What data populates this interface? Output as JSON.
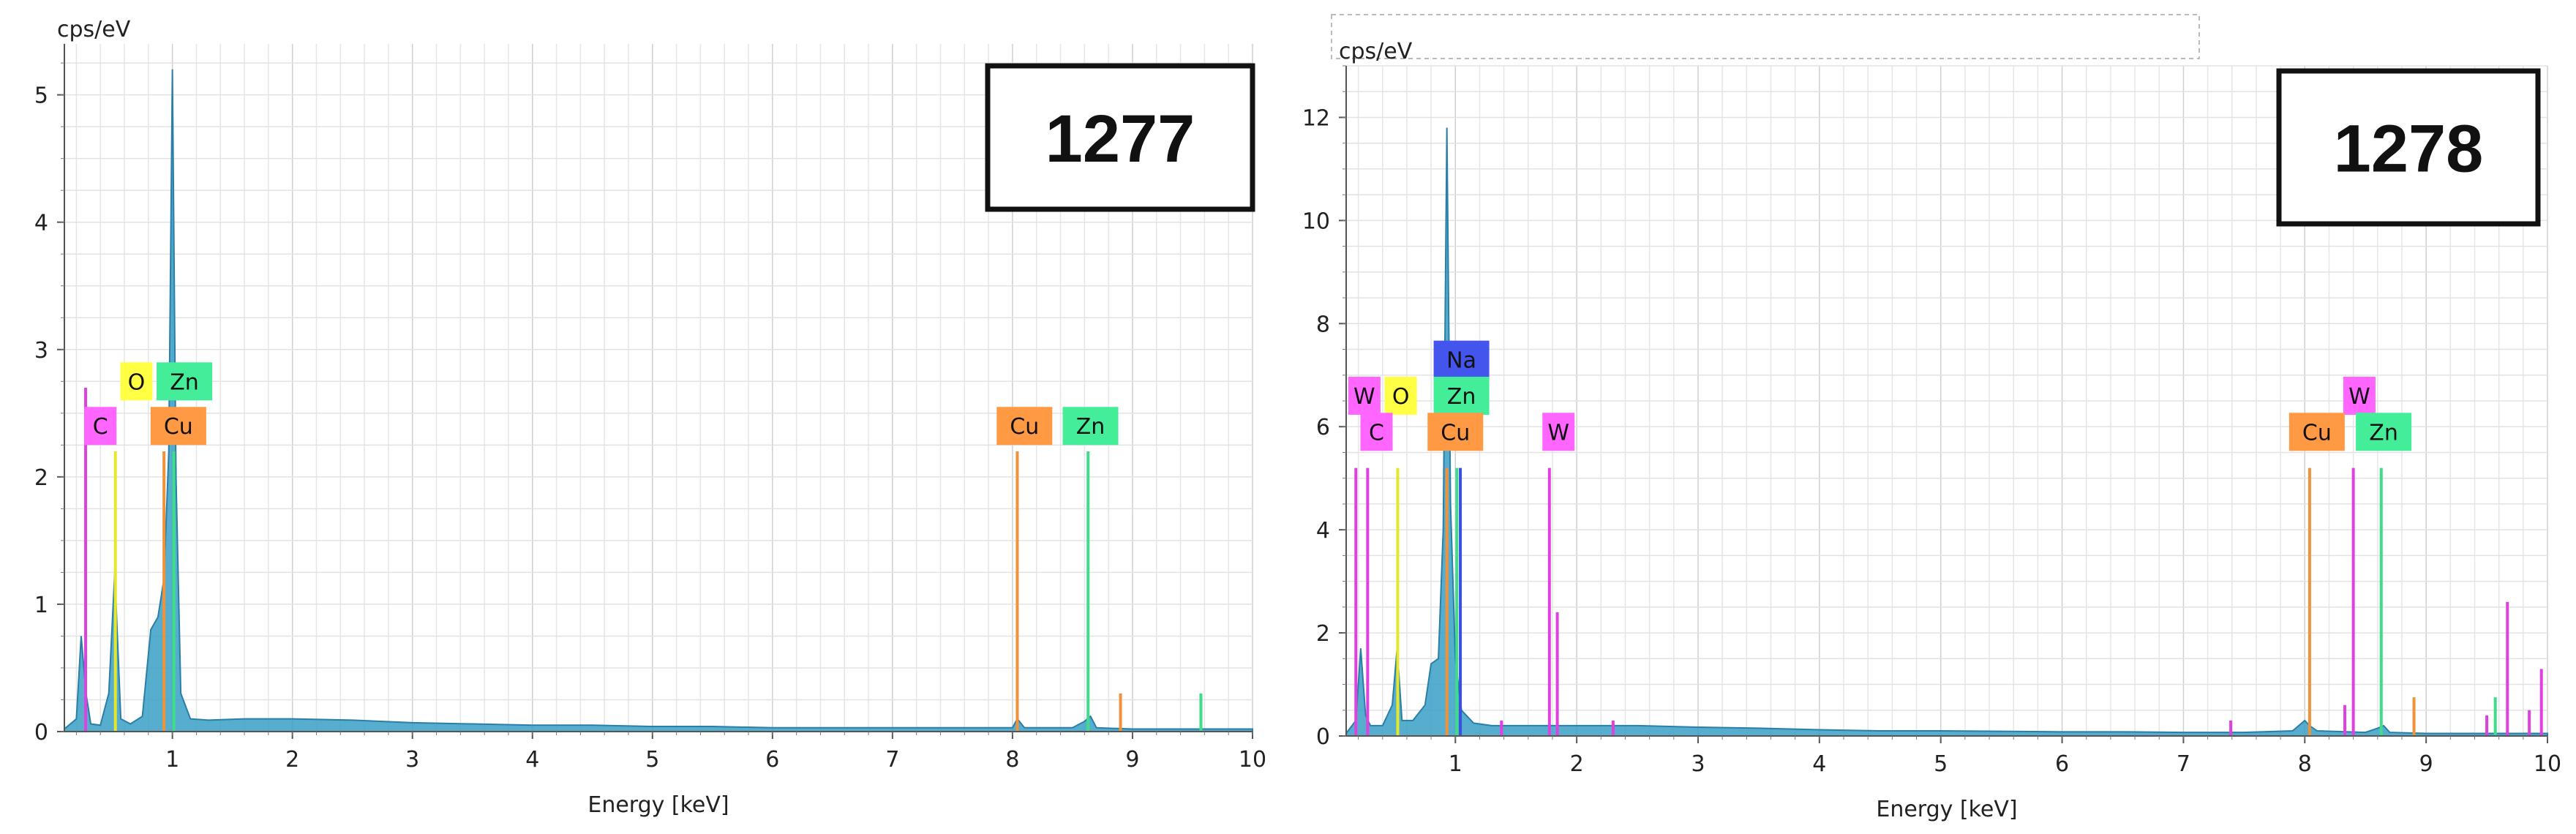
{
  "chart_data": [
    {
      "type": "line",
      "sample_id": "1277",
      "ylabel": "cps/eV",
      "xlabel": "Energy [keV]",
      "xlim": [
        0.1,
        10
      ],
      "ylim": [
        0,
        5.4
      ],
      "xticks": [
        1,
        2,
        3,
        4,
        5,
        6,
        7,
        8,
        9,
        10
      ],
      "yticks": [
        0,
        1,
        2,
        3,
        4,
        5
      ],
      "grid": true,
      "spectrum": {
        "name": "spectrum",
        "color": "#3a9fc4",
        "x": [
          0.1,
          0.2,
          0.24,
          0.28,
          0.32,
          0.4,
          0.47,
          0.52,
          0.57,
          0.65,
          0.75,
          0.82,
          0.88,
          0.93,
          0.97,
          1.0,
          1.03,
          1.07,
          1.15,
          1.3,
          1.6,
          2.0,
          2.5,
          3.0,
          3.5,
          4.0,
          4.5,
          5.0,
          5.5,
          6.0,
          6.5,
          7.0,
          7.5,
          8.0,
          8.04,
          8.1,
          8.5,
          8.6,
          8.65,
          8.7,
          9.0,
          9.5,
          10.0
        ],
        "y": [
          0.02,
          0.1,
          0.75,
          0.3,
          0.06,
          0.05,
          0.3,
          1.25,
          0.1,
          0.06,
          0.12,
          0.8,
          0.9,
          1.2,
          2.2,
          5.2,
          2.0,
          0.3,
          0.1,
          0.09,
          0.1,
          0.1,
          0.09,
          0.07,
          0.06,
          0.05,
          0.05,
          0.04,
          0.04,
          0.03,
          0.03,
          0.03,
          0.03,
          0.03,
          0.1,
          0.03,
          0.03,
          0.08,
          0.12,
          0.03,
          0.02,
          0.02,
          0.02
        ]
      },
      "markers": [
        {
          "element": "C",
          "x": 0.277,
          "height": 2.7,
          "color": "#e040e0"
        },
        {
          "element": "O",
          "x": 0.525,
          "height": 2.2,
          "color": "#e6e62a"
        },
        {
          "element": "Cu",
          "x": 0.93,
          "height": 2.2,
          "color": "#f0923a"
        },
        {
          "element": "Zn",
          "x": 1.012,
          "height": 2.2,
          "color": "#3fdc8a"
        },
        {
          "element": "Cu",
          "x": 8.04,
          "height": 2.2,
          "color": "#f0923a"
        },
        {
          "element": "Zn",
          "x": 8.63,
          "height": 2.2,
          "color": "#3fdc8a"
        },
        {
          "element": "Cu",
          "x": 8.9,
          "height": 0.3,
          "color": "#f0923a"
        },
        {
          "element": "Zn",
          "x": 9.57,
          "height": 0.3,
          "color": "#3fdc8a"
        }
      ],
      "tags": [
        {
          "label": "C",
          "x": 0.4,
          "y": 2.4,
          "color": "#ff66ff"
        },
        {
          "label": "O",
          "x": 0.7,
          "y": 2.75,
          "color": "#ffff44"
        },
        {
          "label": "Zn",
          "x": 1.1,
          "y": 2.75,
          "color": "#44ee99"
        },
        {
          "label": "Cu",
          "x": 1.05,
          "y": 2.4,
          "color": "#ff9944"
        },
        {
          "label": "Cu",
          "x": 8.1,
          "y": 2.4,
          "color": "#ff9944"
        },
        {
          "label": "Zn",
          "x": 8.65,
          "y": 2.4,
          "color": "#44ee99"
        }
      ]
    },
    {
      "type": "line",
      "sample_id": "1278",
      "ylabel": "cps/eV",
      "xlabel": "Energy [keV]",
      "xlim": [
        0.1,
        10
      ],
      "ylim": [
        0,
        13
      ],
      "xticks": [
        1,
        2,
        3,
        4,
        5,
        6,
        7,
        8,
        9,
        10
      ],
      "yticks": [
        0,
        2,
        4,
        6,
        8,
        10,
        12
      ],
      "grid": true,
      "spectrum": {
        "name": "spectrum",
        "color": "#3a9fc4",
        "x": [
          0.1,
          0.18,
          0.22,
          0.26,
          0.3,
          0.4,
          0.48,
          0.52,
          0.56,
          0.65,
          0.75,
          0.8,
          0.86,
          0.9,
          0.93,
          0.96,
          1.0,
          1.05,
          1.15,
          1.3,
          1.6,
          2.0,
          2.5,
          3.0,
          3.5,
          4.0,
          4.5,
          5.0,
          5.5,
          6.0,
          6.5,
          7.0,
          7.5,
          7.9,
          8.0,
          8.04,
          8.1,
          8.5,
          8.6,
          8.65,
          8.7,
          9.0,
          9.5,
          10.0
        ],
        "y": [
          0.05,
          0.3,
          1.7,
          0.4,
          0.2,
          0.2,
          0.6,
          1.7,
          0.3,
          0.3,
          0.6,
          1.4,
          1.5,
          4.0,
          11.8,
          4.5,
          1.5,
          0.5,
          0.25,
          0.2,
          0.2,
          0.2,
          0.2,
          0.17,
          0.15,
          0.12,
          0.1,
          0.1,
          0.09,
          0.08,
          0.08,
          0.07,
          0.07,
          0.1,
          0.3,
          0.2,
          0.1,
          0.07,
          0.15,
          0.2,
          0.07,
          0.05,
          0.05,
          0.05
        ]
      },
      "markers": [
        {
          "element": "W",
          "x": 0.18,
          "height": 5.2,
          "color": "#e040e0"
        },
        {
          "element": "C",
          "x": 0.277,
          "height": 5.2,
          "color": "#e040e0"
        },
        {
          "element": "O",
          "x": 0.525,
          "height": 5.2,
          "color": "#e6e62a"
        },
        {
          "element": "Na",
          "x": 1.041,
          "height": 5.2,
          "color": "#3a50e0"
        },
        {
          "element": "Cu",
          "x": 0.93,
          "height": 5.2,
          "color": "#f0923a"
        },
        {
          "element": "Zn",
          "x": 1.012,
          "height": 5.2,
          "color": "#3fdc8a"
        },
        {
          "element": "W",
          "x": 1.775,
          "height": 5.2,
          "color": "#e040e0"
        },
        {
          "element": "W",
          "x": 1.84,
          "height": 2.4,
          "color": "#e040e0"
        },
        {
          "element": "W",
          "x": 1.38,
          "height": 0.3,
          "color": "#e040e0"
        },
        {
          "element": "W",
          "x": 2.3,
          "height": 0.3,
          "color": "#e040e0"
        },
        {
          "element": "W",
          "x": 7.39,
          "height": 0.3,
          "color": "#e040e0"
        },
        {
          "element": "Cu",
          "x": 8.04,
          "height": 5.2,
          "color": "#f0923a"
        },
        {
          "element": "W",
          "x": 8.33,
          "height": 0.6,
          "color": "#e040e0"
        },
        {
          "element": "W",
          "x": 8.4,
          "height": 5.2,
          "color": "#e040e0"
        },
        {
          "element": "Zn",
          "x": 8.63,
          "height": 5.2,
          "color": "#3fdc8a"
        },
        {
          "element": "Cu",
          "x": 8.9,
          "height": 0.75,
          "color": "#f0923a"
        },
        {
          "element": "W",
          "x": 9.67,
          "height": 2.6,
          "color": "#e040e0"
        },
        {
          "element": "Zn",
          "x": 9.57,
          "height": 0.75,
          "color": "#3fdc8a"
        },
        {
          "element": "W",
          "x": 9.5,
          "height": 0.4,
          "color": "#e040e0"
        },
        {
          "element": "W",
          "x": 9.85,
          "height": 0.5,
          "color": "#e040e0"
        },
        {
          "element": "W",
          "x": 9.95,
          "height": 1.3,
          "color": "#e040e0"
        }
      ],
      "tags": [
        {
          "label": "W",
          "x": 0.25,
          "y": 6.6,
          "color": "#ff66ff"
        },
        {
          "label": "O",
          "x": 0.55,
          "y": 6.6,
          "color": "#ffff44"
        },
        {
          "label": "Na",
          "x": 1.05,
          "y": 7.3,
          "color": "#4455ee"
        },
        {
          "label": "Zn",
          "x": 1.05,
          "y": 6.6,
          "color": "#44ee99"
        },
        {
          "label": "C",
          "x": 0.35,
          "y": 5.9,
          "color": "#ff66ff"
        },
        {
          "label": "Cu",
          "x": 1.0,
          "y": 5.9,
          "color": "#ff9944"
        },
        {
          "label": "W",
          "x": 1.85,
          "y": 5.9,
          "color": "#ff66ff"
        },
        {
          "label": "W",
          "x": 8.45,
          "y": 6.6,
          "color": "#ff66ff"
        },
        {
          "label": "Cu",
          "x": 8.1,
          "y": 5.9,
          "color": "#ff9944"
        },
        {
          "label": "Zn",
          "x": 8.65,
          "y": 5.9,
          "color": "#44ee99"
        }
      ]
    }
  ]
}
